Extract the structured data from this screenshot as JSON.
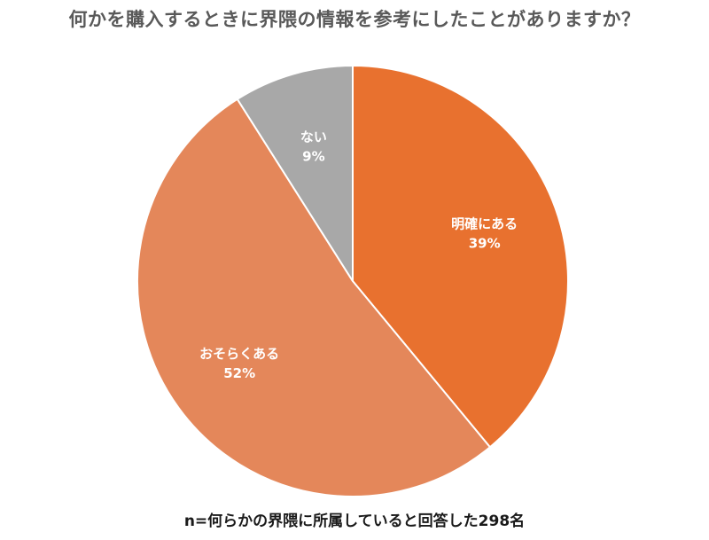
{
  "chart_data": {
    "type": "pie",
    "title": "何かを購入するときに界隈の情報を参考にしたことがありますか？",
    "footnote": "n=何らかの界隈に所属していると回答した298名",
    "start_angle_deg": 0,
    "direction": "clockwise",
    "slices": [
      {
        "label": "明確にある",
        "value": 39,
        "value_label": "39%",
        "color": "#E8712F"
      },
      {
        "label": "おそらくある",
        "value": 52,
        "value_label": "52%",
        "color": "#E4875A"
      },
      {
        "label": "ない",
        "value": 9,
        "value_label": "9%",
        "color": "#A8A8A8"
      }
    ],
    "separator_color": "#ffffff",
    "label_color": "#ffffff"
  }
}
